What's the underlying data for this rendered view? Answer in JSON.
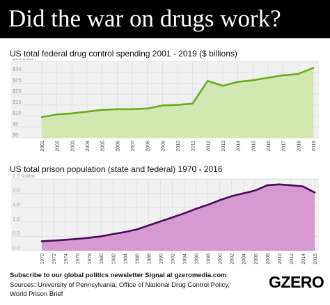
{
  "header": {
    "title": "Did the war on drugs work?"
  },
  "footer": {
    "subscribe": "Subscribe to our global politics newsletter Signal at gzeromedia.com",
    "sources_line1": "Sources: University of Pennsylvania, Office of National Drug Control Policy,",
    "sources_line2": "World Prison Brief",
    "logo": "GZERO"
  },
  "chart_data": [
    {
      "type": "area",
      "title": "US total federal drug control spending 2001 - 2019 ($ billions)",
      "xlabel": "",
      "ylabel": "",
      "x": [
        "2001",
        "2002",
        "2003",
        "2004",
        "2005",
        "2006",
        "2007",
        "2008",
        "2009",
        "2010",
        "2011",
        "2012",
        "2013",
        "2014",
        "2015",
        "2016",
        "2017",
        "2018",
        "2019"
      ],
      "values": [
        9.5,
        10.7,
        11.2,
        12.0,
        12.8,
        13.1,
        13.1,
        13.4,
        14.8,
        15.1,
        15.7,
        26.0,
        23.8,
        25.6,
        26.3,
        27.5,
        28.6,
        29.2,
        32.0
      ],
      "yticks": [
        0,
        5,
        10,
        15,
        20,
        25,
        30,
        35
      ],
      "ytick_labels": [
        "$0",
        "$5",
        "$10",
        "$15",
        "$20",
        "$25",
        "$30",
        "$35 billion"
      ],
      "ylim": [
        0,
        35
      ],
      "grid": true,
      "colors": {
        "line": "#6aaa1e",
        "fill": "#d2e8b0"
      }
    },
    {
      "type": "area",
      "title": "US total prison population (state and federal) 1970 - 2016",
      "xlabel": "",
      "ylabel": "",
      "x": [
        "1970",
        "1972",
        "1974",
        "1976",
        "1978",
        "1980",
        "1982",
        "1984",
        "1986",
        "1988",
        "1990",
        "1992",
        "1994",
        "1996",
        "1998",
        "2000",
        "2002",
        "2004",
        "2006",
        "2008",
        "2010",
        "2012",
        "2014",
        "2016"
      ],
      "values": [
        0.33,
        0.35,
        0.38,
        0.41,
        0.45,
        0.5,
        0.58,
        0.65,
        0.74,
        0.88,
        1.02,
        1.16,
        1.3,
        1.46,
        1.6,
        1.76,
        1.9,
        2.0,
        2.1,
        2.28,
        2.31,
        2.28,
        2.24,
        2.03
      ],
      "yticks": [
        0,
        0.5,
        1.0,
        1.5,
        2.0,
        2.5
      ],
      "ytick_labels": [
        "0.0",
        "0.5",
        "1.0",
        "1.5",
        "2.0",
        "2.5 million"
      ],
      "ylim": [
        0,
        2.5
      ],
      "grid": true,
      "colors": {
        "line": "#4a0a5c",
        "fill": "#d79ad0"
      }
    }
  ]
}
